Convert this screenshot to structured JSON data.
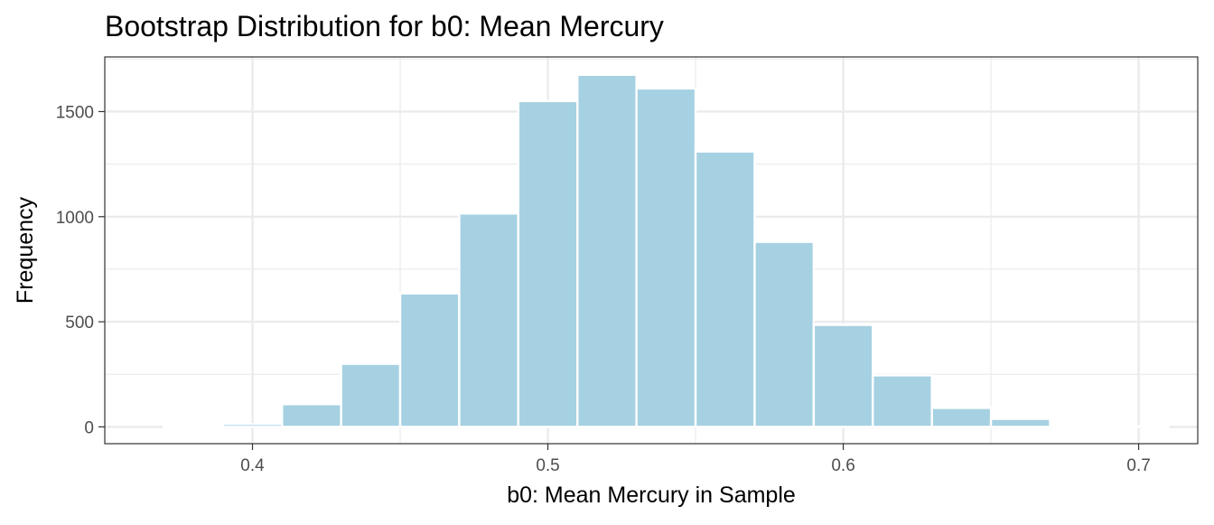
{
  "chart_data": {
    "type": "bar",
    "title": "Bootstrap Distribution for b0: Mean Mercury",
    "xlabel": "b0: Mean Mercury in Sample",
    "ylabel": "Frequency",
    "xlim": [
      0.35,
      0.72
    ],
    "ylim": [
      -80,
      1760
    ],
    "x_ticks": [
      "0.4",
      "0.5",
      "0.6",
      "0.7"
    ],
    "y_ticks": [
      "0",
      "500",
      "1000",
      "1500"
    ],
    "grid": true,
    "bin_width": 0.02,
    "bins": [
      0.38,
      0.4,
      0.42,
      0.44,
      0.46,
      0.48,
      0.5,
      0.52,
      0.54,
      0.56,
      0.58,
      0.6,
      0.62,
      0.64,
      0.66,
      0.68,
      0.7
    ],
    "values": [
      2,
      14,
      108,
      300,
      635,
      1015,
      1550,
      1675,
      1610,
      1310,
      880,
      485,
      245,
      90,
      38,
      2,
      3
    ],
    "fill_color": "#a6d1e2",
    "edge_color": "#ffffff"
  }
}
